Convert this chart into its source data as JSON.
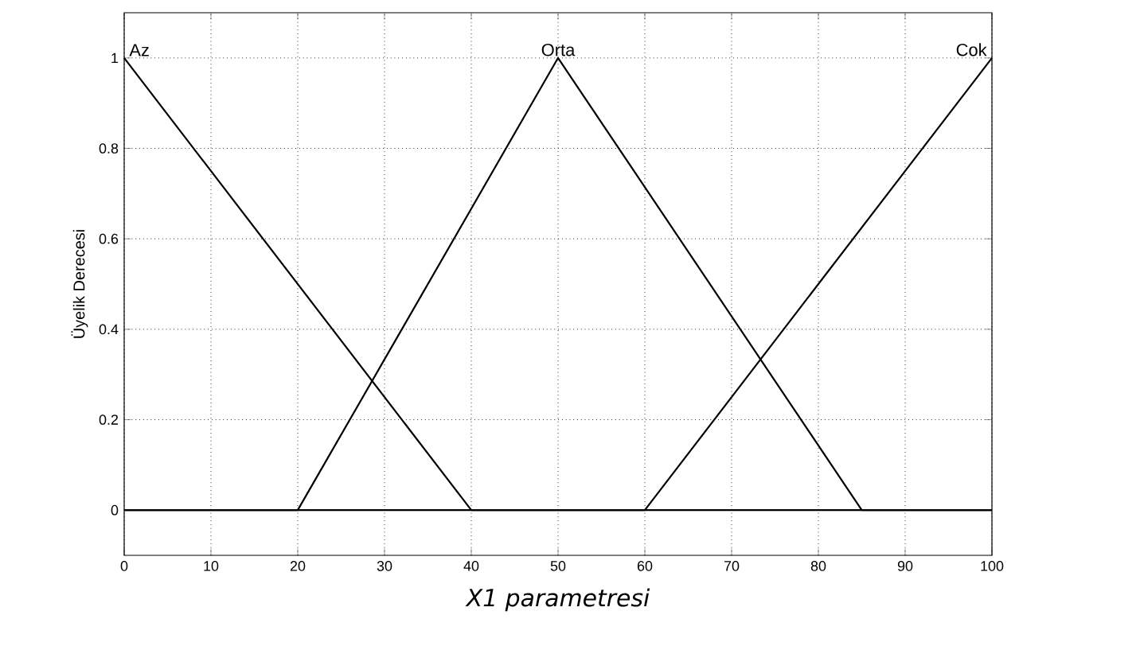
{
  "chart_data": {
    "type": "line",
    "xlabel": "*X1 parametresi*",
    "ylabel": "Üyelik Derecesi",
    "xlim": [
      0,
      100
    ],
    "ylim": [
      -0.1,
      1.1
    ],
    "xticks": [
      0,
      10,
      20,
      30,
      40,
      50,
      60,
      70,
      80,
      90,
      100
    ],
    "yticks": [
      0,
      0.2,
      0.4,
      0.6,
      0.8,
      1
    ],
    "grid": true,
    "marker": "none",
    "line_style": "solid",
    "series": [
      {
        "name": "Az",
        "color": "#000000",
        "x": [
          0,
          40,
          100
        ],
        "values": [
          1,
          0,
          0
        ]
      },
      {
        "name": "Orta",
        "color": "#000000",
        "x": [
          0,
          20,
          50,
          85,
          100
        ],
        "values": [
          0,
          0,
          1,
          0,
          0
        ]
      },
      {
        "name": "Cok",
        "color": "#000000",
        "x": [
          0,
          60,
          100
        ],
        "values": [
          0,
          0,
          1
        ]
      }
    ]
  }
}
